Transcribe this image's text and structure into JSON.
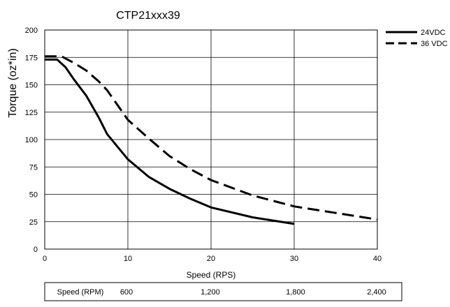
{
  "chart_data": {
    "type": "line",
    "title": "CTP21xxx39",
    "xlabel": "Speed (RPS)",
    "ylabel": "Torque (oz*in)",
    "xlim": [
      0,
      40
    ],
    "ylim": [
      0,
      200
    ],
    "x_ticks": [
      "0",
      "10",
      "20",
      "30",
      "40"
    ],
    "y_ticks": [
      "0",
      "25",
      "50",
      "75",
      "100",
      "125",
      "150",
      "175",
      "200"
    ],
    "grid": true,
    "legend_position": "top-right",
    "series": [
      {
        "name": "24VDC",
        "style": "solid",
        "x": [
          0,
          1,
          1.5,
          2.5,
          3.5,
          5,
          6.5,
          7.5,
          10,
          12.5,
          15,
          17.5,
          20,
          25,
          30
        ],
        "y": [
          173,
          173,
          173,
          166,
          155,
          140,
          120,
          105,
          82,
          66,
          55,
          46,
          38,
          29,
          23
        ]
      },
      {
        "name": "36 VDC",
        "style": "dashed",
        "x": [
          0,
          1.5,
          2,
          2.5,
          3.5,
          5,
          6.5,
          7.5,
          10,
          12.5,
          15,
          17.5,
          20,
          25,
          30,
          35,
          40
        ],
        "y": [
          176,
          176,
          176,
          174,
          170,
          163,
          153,
          145,
          118,
          101,
          85,
          73,
          63,
          49,
          39,
          33,
          27
        ]
      }
    ],
    "rpm_table": {
      "label": "Speed (RPM)",
      "values": [
        "600",
        "1,200",
        "1,800",
        "2,400"
      ],
      "rps": [
        10,
        20,
        30,
        40
      ]
    }
  }
}
